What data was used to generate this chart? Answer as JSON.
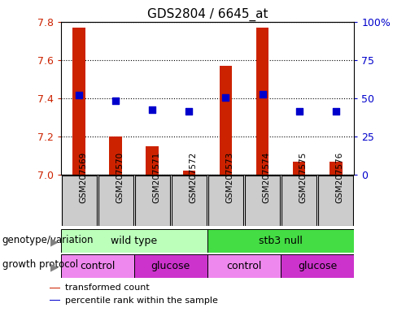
{
  "title": "GDS2804 / 6645_at",
  "samples": [
    "GSM207569",
    "GSM207570",
    "GSM207571",
    "GSM207572",
    "GSM207573",
    "GSM207574",
    "GSM207575",
    "GSM207576"
  ],
  "red_values": [
    7.77,
    7.2,
    7.15,
    7.02,
    7.57,
    7.77,
    7.07,
    7.07
  ],
  "blue_values": [
    7.415,
    7.385,
    7.34,
    7.33,
    7.405,
    7.42,
    7.33,
    7.33
  ],
  "y_min": 7.0,
  "y_max": 7.8,
  "y_ticks": [
    7.0,
    7.2,
    7.4,
    7.6,
    7.8
  ],
  "right_y_ticks": [
    0,
    25,
    50,
    75,
    100
  ],
  "right_y_labels": [
    "0",
    "25",
    "50",
    "75",
    "100%"
  ],
  "bar_color": "#cc2200",
  "dot_color": "#0000cc",
  "genotype_groups": [
    {
      "label": "wild type",
      "start": 0,
      "end": 4,
      "color": "#bbffbb"
    },
    {
      "label": "stb3 null",
      "start": 4,
      "end": 8,
      "color": "#44dd44"
    }
  ],
  "protocol_groups": [
    {
      "label": "control",
      "start": 0,
      "end": 2,
      "color": "#ee88ee"
    },
    {
      "label": "glucose",
      "start": 2,
      "end": 4,
      "color": "#cc33cc"
    },
    {
      "label": "control",
      "start": 4,
      "end": 6,
      "color": "#ee88ee"
    },
    {
      "label": "glucose",
      "start": 6,
      "end": 8,
      "color": "#cc33cc"
    }
  ],
  "legend_items": [
    {
      "label": "transformed count",
      "color": "#cc2200"
    },
    {
      "label": "percentile rank within the sample",
      "color": "#0000cc"
    }
  ],
  "bar_width": 0.35,
  "dot_size": 40,
  "tick_box_color": "#cccccc",
  "row_label_geno": "genotype/variation",
  "row_label_prot": "growth protocol"
}
